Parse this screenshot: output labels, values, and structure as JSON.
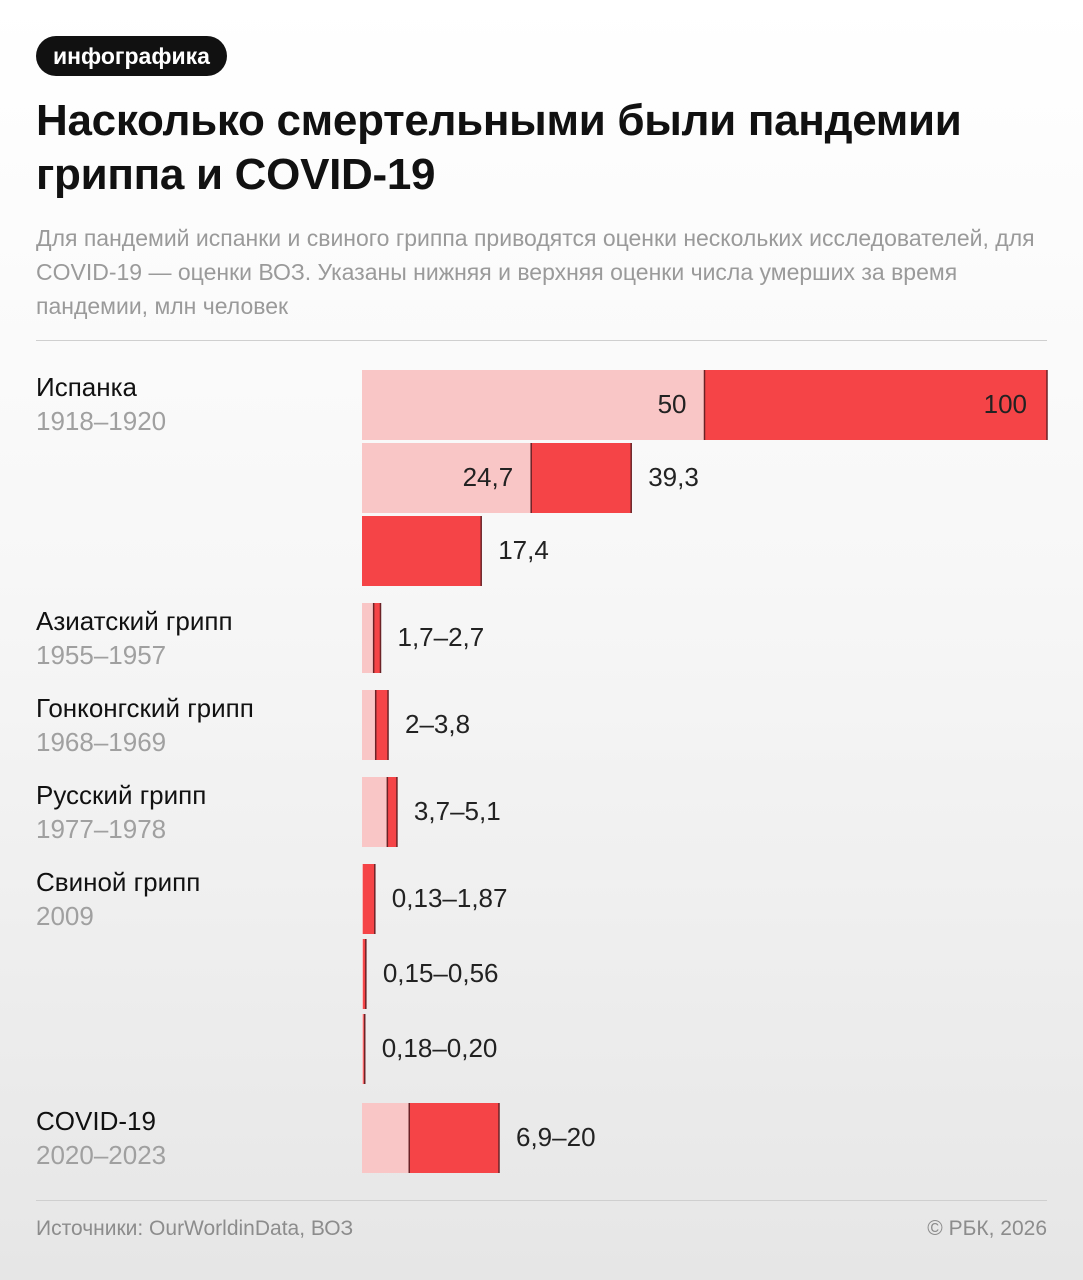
{
  "badge": "инфографика",
  "title": "Насколько смертельными были пандемии гриппа и COVID-19",
  "subtitle": "Для пандемий испанки и свиного гриппа приводятся оценки нескольких исследователей, для COVID-19 — оценки ВОЗ. Указаны нижняя и верхняя оценки числа умерших за время пандемии, млн человек",
  "colors": {
    "low": "#f9c6c6",
    "high": "#f54447",
    "edge": "#6b2226"
  },
  "chart_data": {
    "type": "bar",
    "unit": "млн человек",
    "xlim": [
      0,
      100
    ],
    "groups": [
      {
        "name": "Испанка",
        "years": "1918–1920",
        "estimates": [
          {
            "low": 50,
            "high": 100,
            "low_label": "50",
            "high_label": "100",
            "label_style": "split"
          },
          {
            "low": 24.7,
            "high": 39.3,
            "low_label": "24,7",
            "high_label": "39,3",
            "label_style": "split"
          },
          {
            "low": 0,
            "high": 17.4,
            "label": "17,4"
          }
        ]
      },
      {
        "name": "Азиатский грипп",
        "years": "1955–1957",
        "estimates": [
          {
            "low": 1.7,
            "high": 2.7,
            "label": "1,7–2,7"
          }
        ]
      },
      {
        "name": "Гонконгский грипп",
        "years": "1968–1969",
        "estimates": [
          {
            "low": 2,
            "high": 3.8,
            "label": "2–3,8"
          }
        ]
      },
      {
        "name": "Русский грипп",
        "years": "1977–1978",
        "estimates": [
          {
            "low": 3.7,
            "high": 5.1,
            "label": "3,7–5,1"
          }
        ]
      },
      {
        "name": "Свиной грипп",
        "years": "2009",
        "estimates": [
          {
            "low": 0.13,
            "high": 1.87,
            "label": "0,13–1,87"
          },
          {
            "low": 0.15,
            "high": 0.56,
            "label": "0,15–0,56"
          },
          {
            "low": 0.18,
            "high": 0.2,
            "label": "0,18–0,20"
          }
        ]
      },
      {
        "name": "COVID-19",
        "years": "2020–2023",
        "estimates": [
          {
            "low": 6.9,
            "high": 20,
            "label": "6,9–20"
          }
        ]
      }
    ]
  },
  "footer": {
    "source": "Источники: OurWorldinData, ВОЗ",
    "copyright": "© РБК, 2026"
  }
}
